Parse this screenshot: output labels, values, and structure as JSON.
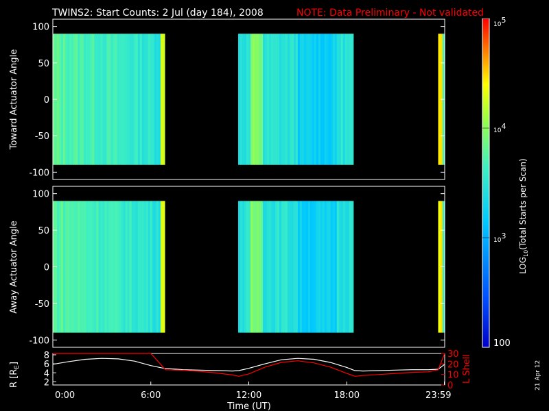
{
  "header": {
    "title": "TWINS2: Start Counts:  2 Jul (day 184), 2008",
    "note": "NOTE: Data Preliminary - Not validated"
  },
  "colors": {
    "background": "#000000",
    "axis": "#ffffff",
    "note": "#ff0000",
    "r_line": "#ffffff",
    "lshell_line": "#ff0000"
  },
  "chart_data": [
    {
      "type": "heatmap",
      "name": "toward-panel",
      "ylabel": "Toward Actuator Angle",
      "xlim": [
        0,
        24
      ],
      "ylim": [
        -110,
        110
      ],
      "yticks": [
        "100",
        "50",
        "0",
        "-50",
        "-100"
      ],
      "yvalues": [
        100,
        50,
        0,
        -50,
        -100
      ],
      "angle_range": [
        -90,
        90
      ],
      "data_intervals_hours": [
        [
          0,
          6.85
        ],
        [
          11.35,
          18.4
        ],
        [
          23.6,
          24
        ]
      ]
    },
    {
      "type": "heatmap",
      "name": "away-panel",
      "ylabel": "Away Actuator Angle",
      "xlim": [
        0,
        24
      ],
      "ylim": [
        -110,
        110
      ],
      "yticks": [
        "100",
        "50",
        "0",
        "-50",
        "-100"
      ],
      "yvalues": [
        100,
        50,
        0,
        -50,
        -100
      ],
      "angle_range": [
        -90,
        90
      ],
      "data_intervals_hours": [
        [
          0,
          6.85
        ],
        [
          11.35,
          18.4
        ],
        [
          23.6,
          24
        ]
      ]
    },
    {
      "type": "line",
      "name": "orbit-panel",
      "xlabel": "Time (UT)",
      "xticks": [
        "0:00",
        "6:00",
        "12:00",
        "18:00",
        "23:59"
      ],
      "xvalues": [
        0,
        6,
        12,
        18,
        23.98
      ],
      "left_axis": {
        "label": "R [R",
        "label_sub": "E",
        "label_end": "]",
        "ticks": [
          "8",
          "6",
          "4",
          "2"
        ],
        "values": [
          8,
          6,
          4,
          2
        ],
        "ylim": [
          1.3,
          8.3
        ]
      },
      "right_axis": {
        "label": "L Shell",
        "ticks": [
          "30",
          "20",
          "10",
          "0"
        ],
        "values": [
          30,
          20,
          10,
          0
        ],
        "ylim": [
          0,
          30
        ]
      },
      "series": [
        {
          "axis": "left",
          "color": "#ffffff",
          "x": [
            0,
            1,
            2,
            3,
            4,
            5,
            6,
            6.8,
            8,
            9,
            10,
            11,
            11.4,
            12,
            13,
            14,
            15,
            16,
            17,
            18,
            18.5,
            19,
            20,
            21,
            22,
            23,
            23.6,
            24
          ],
          "y": [
            5.9,
            6.5,
            7.0,
            7.2,
            7.1,
            6.6,
            5.6,
            5.0,
            4.7,
            4.6,
            4.5,
            4.4,
            4.5,
            5.0,
            6.0,
            6.9,
            7.2,
            7.0,
            6.3,
            5.2,
            4.5,
            4.4,
            4.5,
            4.6,
            4.7,
            4.7,
            4.8,
            5.9
          ]
        },
        {
          "axis": "right",
          "color": "#ff0000",
          "x": [
            0,
            0.4,
            1,
            2,
            3,
            4,
            5,
            6,
            6.9,
            8,
            9,
            10,
            11,
            11.4,
            12,
            13,
            14,
            15,
            16,
            17,
            18,
            18.5,
            19,
            20,
            21,
            22,
            23,
            23.6,
            24
          ],
          "y": [
            30,
            30,
            30,
            30,
            30,
            30,
            30,
            30,
            14.5,
            14.0,
            13.0,
            11.5,
            9.5,
            8.3,
            10.5,
            17.0,
            21.5,
            23.0,
            21.0,
            17.0,
            11.0,
            8.3,
            9.0,
            10.0,
            11.0,
            12.0,
            12.5,
            14.5,
            30
          ]
        }
      ]
    }
  ],
  "colorbar": {
    "label_prefix": "LOG",
    "label_sub": "10",
    "label_suffix": "(Total Starts per Scan)",
    "min_label": "100",
    "ticks": [
      {
        "base": "10",
        "exp": "5",
        "value": 100000
      },
      {
        "base": "10",
        "exp": "4",
        "value": 10000
      },
      {
        "base": "10",
        "exp": "3",
        "value": 1000
      }
    ],
    "range": [
      100,
      100000
    ],
    "scale": "log"
  },
  "footer": {
    "date_stamp": "21 Apr 12"
  }
}
